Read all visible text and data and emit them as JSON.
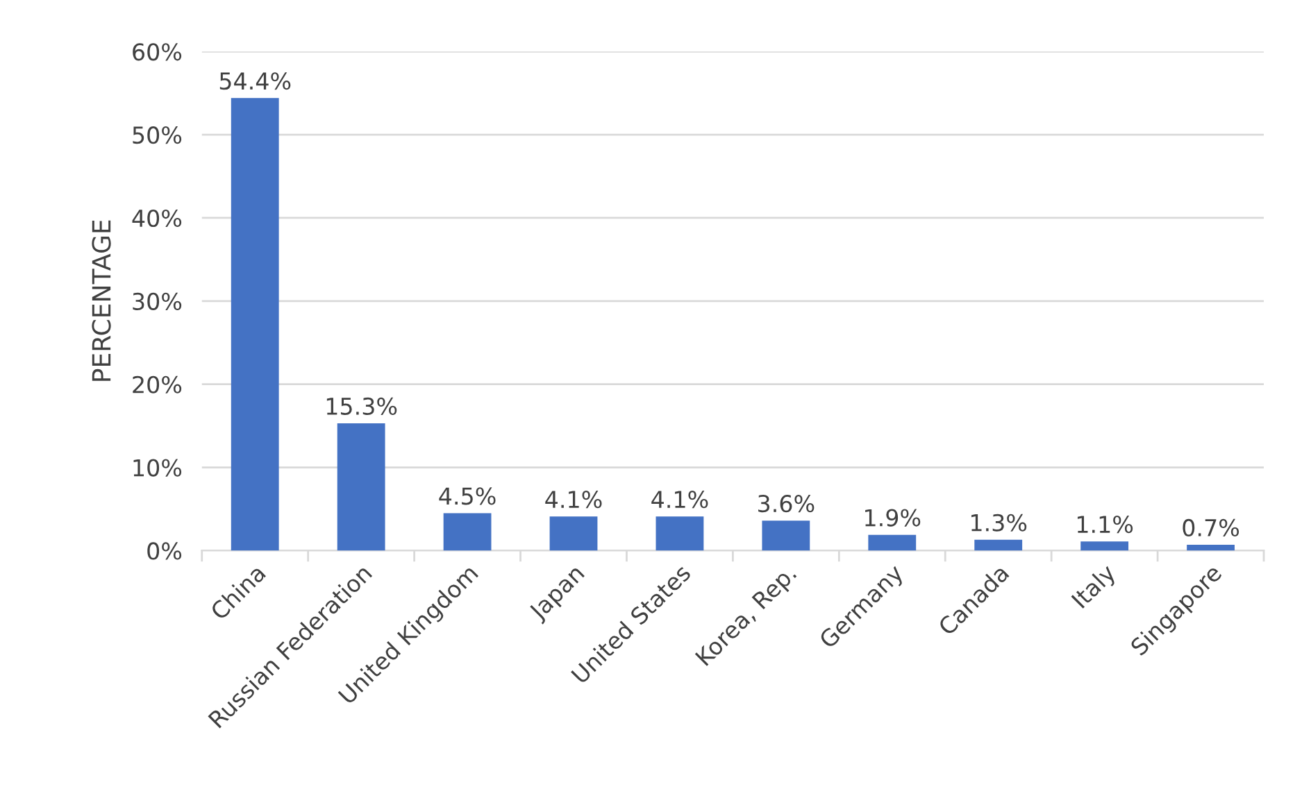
{
  "chart_data": {
    "type": "bar",
    "ylabel": "PERCENTAGE",
    "categories": [
      "China",
      "Russian Federation",
      "United Kingdom",
      "Japan",
      "United States",
      "Korea, Rep.",
      "Germany",
      "Canada",
      "Italy",
      "Singapore"
    ],
    "values": [
      54.4,
      15.3,
      4.5,
      4.1,
      4.1,
      3.6,
      1.9,
      1.3,
      1.1,
      0.7
    ],
    "value_labels": [
      "54.4%",
      "15.3%",
      "4.5%",
      "4.1%",
      "4.1%",
      "3.6%",
      "1.9%",
      "1.3%",
      "1.1%",
      "0.7%"
    ],
    "color": "#4472c4",
    "ylim": [
      0,
      60
    ],
    "yticks": [
      {
        "value": 0,
        "label": "0%"
      },
      {
        "value": 10,
        "label": "10%"
      },
      {
        "value": 20,
        "label": "20%"
      },
      {
        "value": 30,
        "label": "30%"
      },
      {
        "value": 40,
        "label": "40%"
      },
      {
        "value": 50,
        "label": "50%"
      },
      {
        "value": 60,
        "label": "60%"
      }
    ],
    "grid": "y",
    "legend": false
  }
}
